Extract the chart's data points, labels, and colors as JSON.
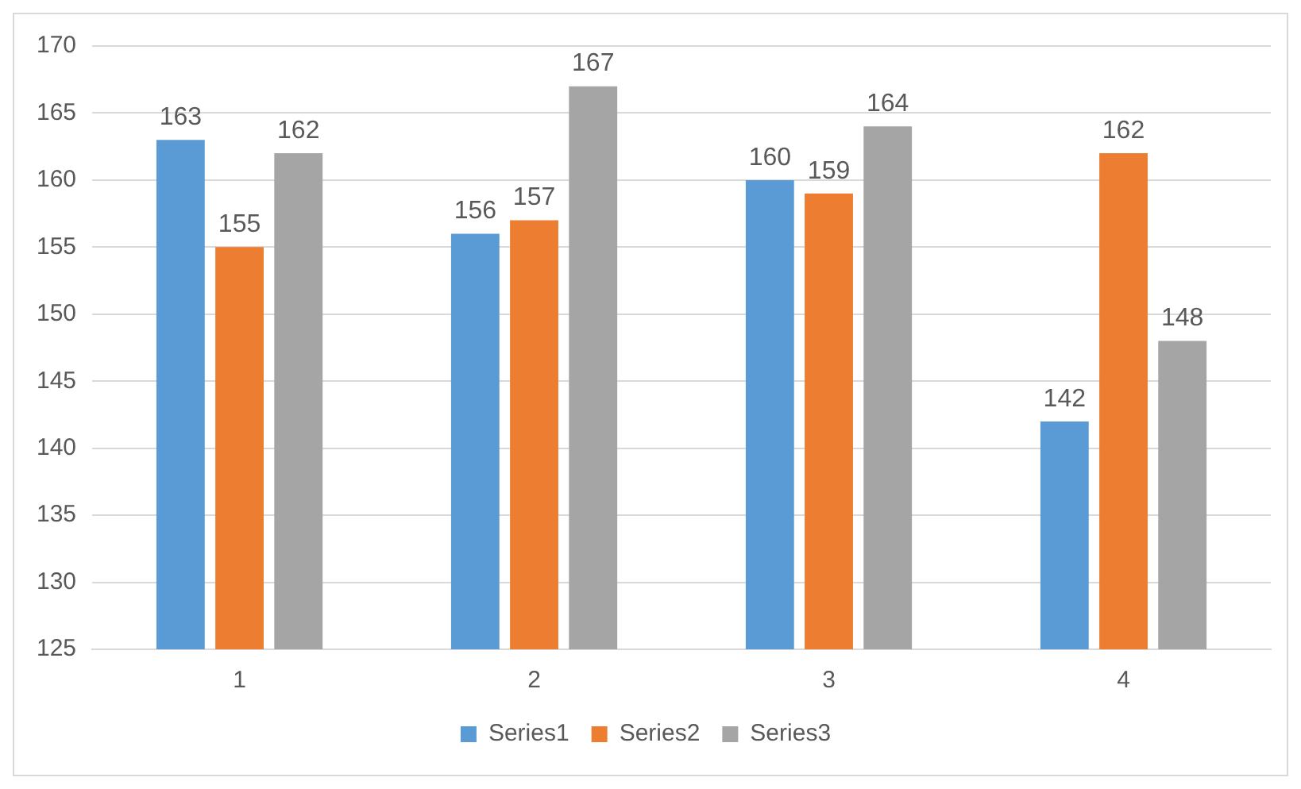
{
  "chart_data": {
    "type": "bar",
    "categories": [
      "1",
      "2",
      "3",
      "4"
    ],
    "series": [
      {
        "name": "Series1",
        "color": "#5b9bd5",
        "values": [
          163,
          156,
          160,
          142
        ]
      },
      {
        "name": "Series2",
        "color": "#ed7d31",
        "values": [
          155,
          157,
          159,
          162
        ]
      },
      {
        "name": "Series3",
        "color": "#a5a5a5",
        "values": [
          162,
          167,
          164,
          148
        ]
      }
    ],
    "ylim": [
      125,
      170
    ],
    "yticks": [
      125,
      130,
      135,
      140,
      145,
      150,
      155,
      160,
      165,
      170
    ],
    "grid": "y",
    "legend": "bottom",
    "data_labels": true
  }
}
